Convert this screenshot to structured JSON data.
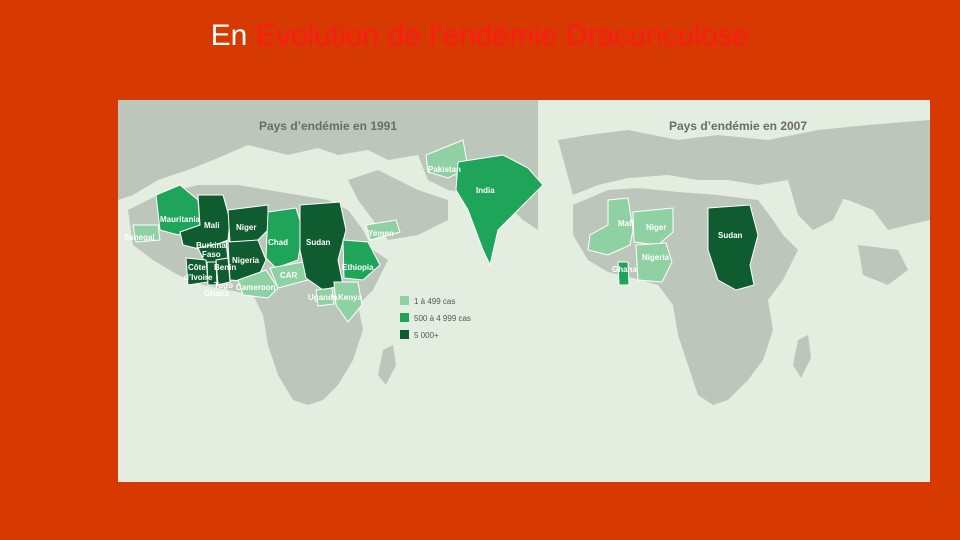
{
  "slide": {
    "title_prefix": "En",
    "title_main": "Evolution de l’endémie Dracunculose"
  },
  "maps": {
    "map_1991": {
      "title": "Pays d’endémie en 1991",
      "countries": {
        "senegal": "Senegal",
        "mauritania": "Mauritania",
        "mali": "Mali",
        "niger": "Niger",
        "burkina": "Burkina",
        "faso": "Faso",
        "cote": "Côte",
        "ivoire": "d’Ivoire",
        "benin": "Benin",
        "togo": "Togo",
        "ghana": "Ghana",
        "nigeria": "Nigeria",
        "cameroon": "Cameroon",
        "chad": "Chad",
        "car": "CAR",
        "sudan": "Sudan",
        "ethiopia": "Ethiopia",
        "uganda": "Uganda",
        "kenya": "Kenya",
        "yemen": "Yemen",
        "pakistan": "Pakistan",
        "india": "India"
      }
    },
    "map_2007": {
      "title": "Pays d’endémie en 2007",
      "countries": {
        "mali": "Mali",
        "niger": "Niger",
        "nigeria": "Nigeria",
        "ghana": "Ghana",
        "sudan": "Sudan"
      }
    },
    "legend": {
      "items": [
        {
          "label": "1 à 499 cas",
          "color": "#8fd1a2"
        },
        {
          "label": "500 à 4 999 cas",
          "color": "#1fa55a"
        },
        {
          "label": "5 000+",
          "color": "#0e5c30"
        }
      ]
    }
  },
  "colors": {
    "background": "#d63a00",
    "title_prefix": "#ffffff",
    "title_main": "#ff1a1a",
    "map_background": "#e3eee0",
    "land": "#bcc6ba"
  }
}
